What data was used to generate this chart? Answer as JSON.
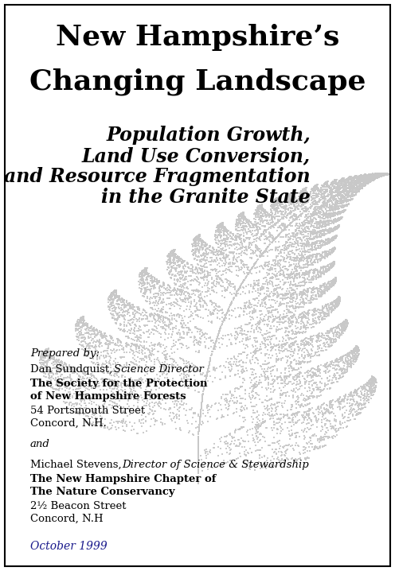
{
  "title_line1": "New Hampshire’s",
  "title_line2": "Changing Landscape",
  "subtitle_line1": "Population Growth,",
  "subtitle_line2": "Land Use Conversion,",
  "subtitle_line3": "and Resource Fragmentation",
  "subtitle_line4": "in the Granite State",
  "prepared_by": "Prepared by:",
  "author1_name": "Dan Sundquist, ",
  "author1_title": "Science Director",
  "author1_org1": "The Society for the Protection",
  "author1_org2": "of New Hampshire Forests",
  "author1_addr1": "54 Portsmouth Street",
  "author1_addr2": "Concord, N.H.",
  "and_text": "and",
  "author2_name": "Michael Stevens, ",
  "author2_title": "Director of Science & Stewardship",
  "author2_org1": "The New Hampshire Chapter of",
  "author2_org2": "The Nature Conservancy",
  "author2_addr1": "2½ Beacon Street",
  "author2_addr2": "Concord, N.H",
  "date": "October 1999",
  "bg_color": "#ffffff",
  "border_color": "#000000",
  "title_color": "#000000",
  "subtitle_color": "#000000",
  "text_color": "#000000",
  "date_color": "#1a1a8c",
  "fern_color": "#c8c8c8",
  "title_fontsize": 26,
  "subtitle_fontsize": 17,
  "body_fontsize": 9.5,
  "date_fontsize": 10
}
